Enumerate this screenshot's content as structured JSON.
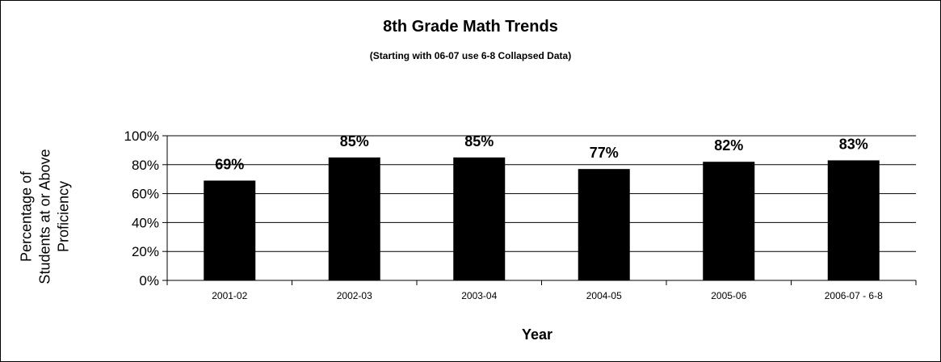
{
  "chart_data": {
    "type": "bar",
    "title": "8th Grade Math Trends",
    "subtitle": "(Starting with 06-07 use 6-8 Collapsed Data)",
    "xlabel": "Year",
    "ylabel": "Percentage of Students at or Above Proficiency",
    "ylabel_lines": [
      "Percentage of",
      "Students at or Above",
      "Proficiency"
    ],
    "categories": [
      "2001-02",
      "2002-03",
      "2003-04",
      "2004-05",
      "2005-06",
      "2006-07 - 6-8"
    ],
    "values": [
      69,
      85,
      85,
      77,
      82,
      83
    ],
    "data_labels": [
      "69%",
      "85%",
      "85%",
      "77%",
      "82%",
      "83%"
    ],
    "ylim": [
      0,
      100
    ],
    "yticks": [
      0,
      20,
      40,
      60,
      80,
      100
    ],
    "ytick_labels": [
      "0%",
      "20%",
      "40%",
      "60%",
      "80%",
      "100%"
    ],
    "grid": true,
    "legend": "none",
    "bar_color": "#000000",
    "gridline_color": "#000000"
  }
}
